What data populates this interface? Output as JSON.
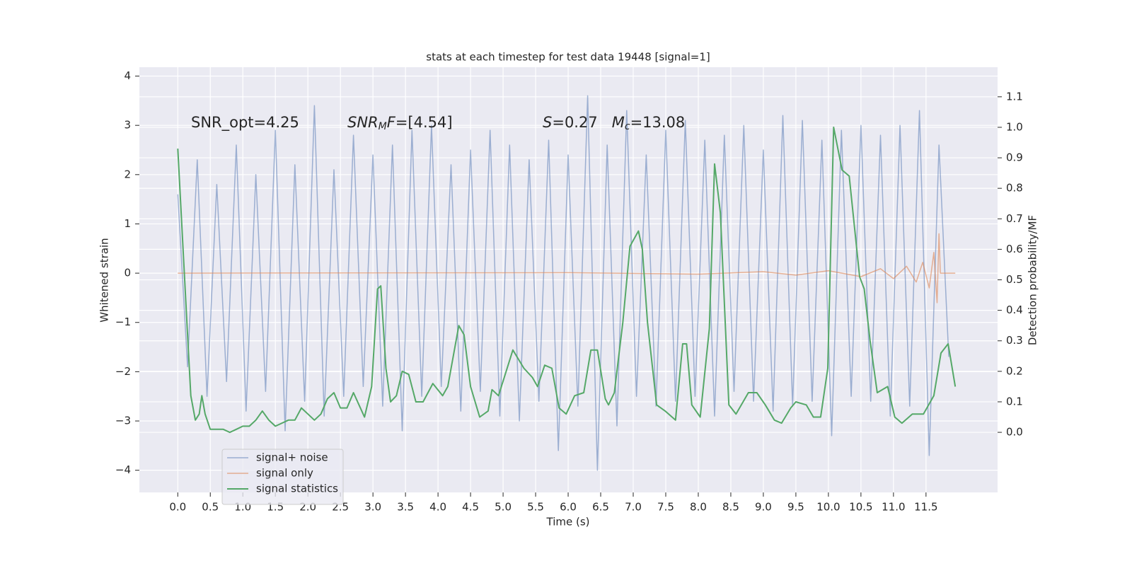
{
  "chart_data": {
    "type": "line",
    "title": "stats at each timestep for test data 19448 [signal=1]",
    "xlabel": "Time (s)",
    "ylabel": "Whitened strain",
    "y2label": "Detection probability/MF",
    "annotations": [
      {
        "parts": [
          {
            "text": "SNR_opt=4.25"
          }
        ]
      },
      {
        "parts": [
          {
            "text": "SNR",
            "italic": true
          },
          {
            "text": "M",
            "italic": true,
            "sub": true
          },
          {
            "text": "F",
            "italic": true
          },
          {
            "text": "=[4.54]"
          }
        ]
      },
      {
        "parts": [
          {
            "text": "S",
            "italic": true
          },
          {
            "text": "=0.27   "
          },
          {
            "text": "M",
            "italic": true
          },
          {
            "text": "c",
            "italic": true,
            "sub": true
          },
          {
            "text": "=13.08"
          }
        ]
      }
    ],
    "xlim": [
      -0.59,
      12.6
    ],
    "ylim": [
      -4.45,
      4.18
    ],
    "y2lim": [
      -0.197,
      1.197
    ],
    "xticks": [
      {
        "value": 0,
        "label": "0.0"
      },
      0.5,
      {
        "value": 1,
        "label": "1.0"
      },
      1.5,
      {
        "value": 2,
        "label": "2.0"
      },
      2.5,
      {
        "value": 3,
        "label": "3.0"
      },
      3.5,
      {
        "value": 4,
        "label": "4.0"
      },
      4.5,
      {
        "value": 5,
        "label": "5.0"
      },
      5.5,
      {
        "value": 6,
        "label": "6.0"
      },
      6.5,
      {
        "value": 7,
        "label": "7.0"
      },
      7.5,
      {
        "value": 8,
        "label": "8.0"
      },
      8.5,
      {
        "value": 9,
        "label": "9.0"
      },
      9.5,
      {
        "value": 10,
        "label": "10.0"
      },
      10.5,
      {
        "value": 11,
        "label": "11.0"
      },
      11.5
    ],
    "yticks": [
      {
        "value": -4,
        "label": "−4"
      },
      {
        "value": -3,
        "label": "−3"
      },
      {
        "value": -2,
        "label": "−2"
      },
      {
        "value": -1,
        "label": "−1"
      },
      0,
      1,
      2,
      3,
      4
    ],
    "y2ticks": [
      {
        "value": 0,
        "label": "0.0"
      },
      0.1,
      0.2,
      0.3,
      0.4,
      0.5,
      0.6,
      0.7,
      0.8,
      0.9,
      {
        "value": 1,
        "label": "1.0"
      },
      1.1
    ],
    "grid": true,
    "legend": "lower left",
    "series": [
      {
        "name": "signal+ noise",
        "color": "#4c72b0",
        "x": [
          0,
          0.15,
          0.3,
          0.45,
          0.6,
          0.75,
          0.9,
          1.05,
          1.2,
          1.35,
          1.5,
          1.65,
          1.8,
          1.95,
          2.1,
          2.25,
          2.4,
          2.55,
          2.7,
          2.85,
          3,
          3.15,
          3.3,
          3.45,
          3.6,
          3.75,
          3.9,
          4.05,
          4.2,
          4.35,
          4.5,
          4.65,
          4.8,
          4.95,
          5.1,
          5.25,
          5.4,
          5.55,
          5.7,
          5.85,
          6,
          6.15,
          6.3,
          6.45,
          6.6,
          6.75,
          6.9,
          7.05,
          7.2,
          7.35,
          7.5,
          7.65,
          7.8,
          7.95,
          8.1,
          8.25,
          8.4,
          8.55,
          8.7,
          8.85,
          9,
          9.15,
          9.3,
          9.45,
          9.6,
          9.75,
          9.9,
          10.05,
          10.2,
          10.35,
          10.5,
          10.65,
          10.8,
          10.95,
          11.1,
          11.25,
          11.4,
          11.55,
          11.7,
          11.85
        ],
        "values": [
          1.6,
          -1.9,
          2.3,
          -2.5,
          1.8,
          -2.2,
          2.6,
          -2.8,
          2.0,
          -2.4,
          2.9,
          -3.2,
          2.2,
          -2.6,
          3.4,
          -2.9,
          2.1,
          -2.5,
          2.8,
          -2.3,
          2.4,
          -2.7,
          2.6,
          -3.2,
          2.9,
          -2.5,
          3.0,
          -2.3,
          2.2,
          -2.8,
          2.5,
          -2.4,
          2.9,
          -2.9,
          2.6,
          -3.0,
          2.3,
          -2.6,
          2.7,
          -3.6,
          2.4,
          -2.7,
          3.6,
          -4.0,
          2.6,
          -3.1,
          3.3,
          -2.5,
          2.4,
          -2.7,
          2.9,
          -2.6,
          3.1,
          -2.5,
          2.7,
          -2.9,
          2.8,
          -2.4,
          3.0,
          -2.6,
          2.5,
          -2.8,
          3.2,
          -2.7,
          3.1,
          -2.6,
          2.7,
          -3.3,
          2.9,
          -2.5,
          3.0,
          -2.6,
          2.8,
          -2.9,
          3.0,
          -2.7,
          3.3,
          -3.7,
          2.6,
          -1.7
        ]
      },
      {
        "name": "signal only",
        "color": "#dd8452",
        "x": [
          0,
          6,
          8,
          9,
          9.5,
          10,
          10.5,
          10.8,
          11.0,
          11.2,
          11.35,
          11.45,
          11.55,
          11.62,
          11.67,
          11.7,
          11.72,
          11.95
        ],
        "values": [
          0,
          0.01,
          -0.02,
          0.03,
          -0.04,
          0.05,
          -0.07,
          0.09,
          -0.11,
          0.14,
          -0.18,
          0.22,
          -0.3,
          0.42,
          -0.6,
          0.8,
          0,
          0
        ]
      },
      {
        "name": "signal statistics",
        "color": "#55a868",
        "axis": "y2",
        "x": [
          0,
          0.15,
          0.2,
          0.27,
          0.33,
          0.37,
          0.42,
          0.5,
          0.6,
          0.7,
          0.8,
          0.9,
          1.0,
          1.1,
          1.2,
          1.3,
          1.4,
          1.5,
          1.6,
          1.7,
          1.8,
          1.9,
          2.0,
          2.1,
          2.2,
          2.3,
          2.4,
          2.5,
          2.6,
          2.7,
          2.87,
          2.98,
          3.07,
          3.12,
          3.2,
          3.27,
          3.36,
          3.45,
          3.55,
          3.66,
          3.77,
          3.92,
          4.07,
          4.15,
          4.32,
          4.4,
          4.5,
          4.64,
          4.77,
          4.83,
          4.93,
          5.15,
          5.32,
          5.45,
          5.53,
          5.64,
          5.75,
          5.86,
          5.97,
          6.1,
          6.24,
          6.35,
          6.45,
          6.57,
          6.62,
          6.71,
          6.84,
          6.95,
          7.08,
          7.14,
          7.22,
          7.36,
          7.49,
          7.65,
          7.76,
          7.82,
          7.9,
          8.03,
          8.17,
          8.25,
          8.34,
          8.47,
          8.58,
          8.77,
          8.9,
          9.03,
          9.17,
          9.28,
          9.42,
          9.5,
          9.66,
          9.77,
          9.88,
          9.99,
          10.08,
          10.21,
          10.32,
          10.48,
          10.55,
          10.64,
          10.75,
          10.91,
          11.02,
          11.13,
          11.29,
          11.46,
          11.62,
          11.73,
          11.84,
          11.95
        ],
        "values": [
          0.93,
          0.32,
          0.12,
          0.04,
          0.06,
          0.12,
          0.06,
          0.01,
          0.01,
          0.01,
          0.0,
          0.01,
          0.02,
          0.02,
          0.04,
          0.07,
          0.04,
          0.02,
          0.03,
          0.04,
          0.04,
          0.08,
          0.06,
          0.04,
          0.06,
          0.11,
          0.13,
          0.08,
          0.08,
          0.13,
          0.05,
          0.15,
          0.47,
          0.48,
          0.21,
          0.1,
          0.12,
          0.2,
          0.19,
          0.1,
          0.1,
          0.16,
          0.12,
          0.15,
          0.35,
          0.32,
          0.15,
          0.05,
          0.07,
          0.14,
          0.12,
          0.27,
          0.21,
          0.18,
          0.15,
          0.22,
          0.21,
          0.08,
          0.06,
          0.12,
          0.13,
          0.27,
          0.27,
          0.11,
          0.09,
          0.13,
          0.36,
          0.61,
          0.66,
          0.6,
          0.36,
          0.09,
          0.07,
          0.04,
          0.29,
          0.29,
          0.09,
          0.05,
          0.34,
          0.88,
          0.72,
          0.09,
          0.06,
          0.13,
          0.13,
          0.09,
          0.04,
          0.03,
          0.08,
          0.1,
          0.09,
          0.05,
          0.05,
          0.21,
          1.0,
          0.86,
          0.84,
          0.51,
          0.47,
          0.3,
          0.13,
          0.15,
          0.05,
          0.03,
          0.06,
          0.06,
          0.12,
          0.26,
          0.29,
          0.15
        ]
      }
    ]
  }
}
